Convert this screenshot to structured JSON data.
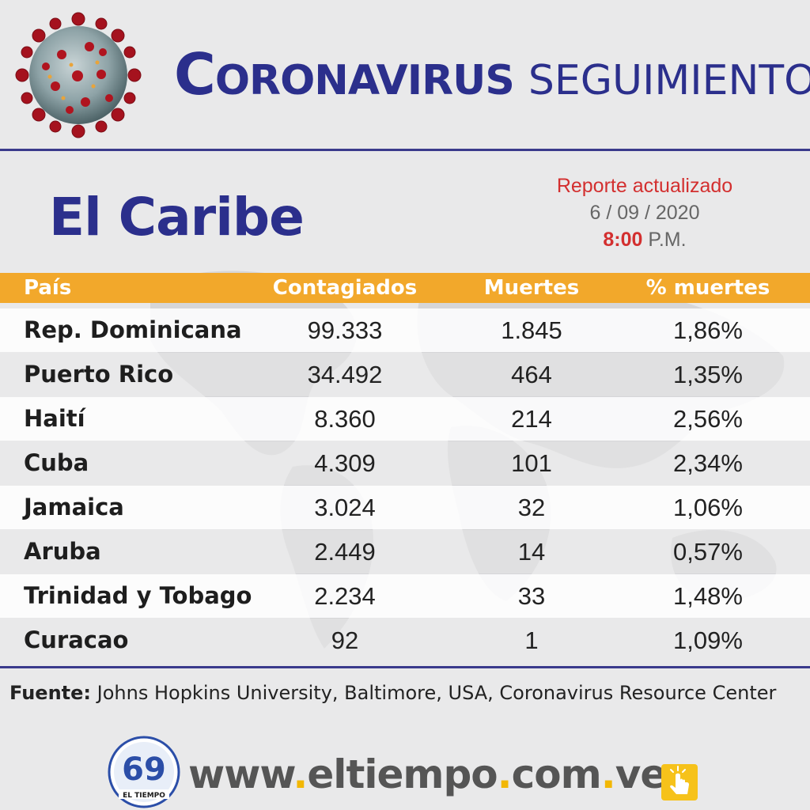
{
  "header": {
    "title_cap": "C",
    "title_rest": "oronavirus",
    "title_sub": "Seguimiento"
  },
  "region": "El Caribe",
  "report": {
    "line1": "Reporte actualizado",
    "date": "6 / 09 / 2020",
    "time_value": "8:00",
    "time_suffix": "P.M."
  },
  "table": {
    "headers": [
      "País",
      "Contagiados",
      "Muertes",
      "% muertes"
    ],
    "rows": [
      [
        "Rep. Dominicana",
        "99.333",
        "1.845",
        "1,86%"
      ],
      [
        "Puerto Rico",
        "34.492",
        "464",
        "1,35%"
      ],
      [
        "Haití",
        "8.360",
        "214",
        "2,56%"
      ],
      [
        "Cuba",
        "4.309",
        "101",
        "2,34%"
      ],
      [
        "Jamaica",
        "3.024",
        "32",
        "1,06%"
      ],
      [
        "Aruba",
        "2.449",
        "14",
        "0,57%"
      ],
      [
        "Trinidad y Tobago",
        "2.234",
        "33",
        "1,48%"
      ],
      [
        "Curacao",
        "92",
        "1",
        "1,09%"
      ]
    ]
  },
  "chart_data": {
    "type": "table",
    "title": "El Caribe",
    "columns": [
      "País",
      "Contagiados",
      "Muertes",
      "% muertes"
    ],
    "rows": [
      {
        "pais": "Rep. Dominicana",
        "contagiados": 99333,
        "muertes": 1845,
        "pct_muertes": 1.86
      },
      {
        "pais": "Puerto Rico",
        "contagiados": 34492,
        "muertes": 464,
        "pct_muertes": 1.35
      },
      {
        "pais": "Haití",
        "contagiados": 8360,
        "muertes": 214,
        "pct_muertes": 2.56
      },
      {
        "pais": "Cuba",
        "contagiados": 4309,
        "muertes": 101,
        "pct_muertes": 2.34
      },
      {
        "pais": "Jamaica",
        "contagiados": 3024,
        "muertes": 32,
        "pct_muertes": 1.06
      },
      {
        "pais": "Aruba",
        "contagiados": 2449,
        "muertes": 14,
        "pct_muertes": 0.57
      },
      {
        "pais": "Trinidad y Tobago",
        "contagiados": 2234,
        "muertes": 33,
        "pct_muertes": 1.48
      },
      {
        "pais": "Curacao",
        "contagiados": 92,
        "muertes": 1,
        "pct_muertes": 1.09
      }
    ]
  },
  "source": {
    "label": "Fuente:",
    "text": "Johns Hopkins University, Baltimore, USA, Coronavirus Resource Center"
  },
  "footer": {
    "url_parts": [
      "www",
      ".",
      "eltiempo",
      ".",
      "com",
      ".",
      "ve"
    ],
    "logo_number": "69",
    "logo_name": "EL TIEMPO"
  },
  "colors": {
    "navy": "#2b2f8c",
    "orange_header": "#f2a82b",
    "red": "#d32f2f",
    "background": "#e9e9ea"
  }
}
